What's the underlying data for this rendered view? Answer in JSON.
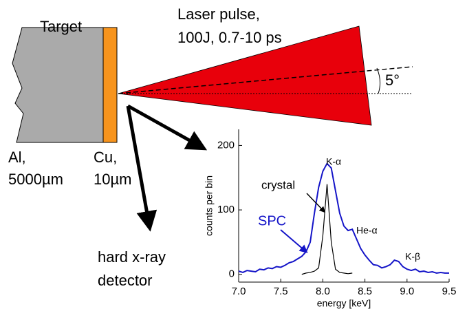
{
  "labels": {
    "target": "Target",
    "laser1": "Laser pulse,",
    "laser2": "100J, 0.7-10 ps",
    "angle": "5°",
    "al1": "Al,",
    "al2": "5000µm",
    "cu1": "Cu,",
    "cu2": "10µm",
    "det1": "hard x-ray",
    "det2": "detector"
  },
  "chart_data": {
    "type": "line",
    "xlabel": "energy [keV]",
    "ylabel": "counts per bin",
    "xlim": [
      7.0,
      9.5
    ],
    "ylim": [
      -12,
      225
    ],
    "xticks": [
      {
        "value": 7,
        "label": "7.0"
      },
      7.5,
      {
        "value": 8,
        "label": "8.0"
      },
      8.5,
      {
        "value": 9,
        "label": "9.0"
      },
      9.5
    ],
    "yticks": [
      0,
      100,
      200
    ],
    "series": [
      {
        "name": "SPC",
        "color": "#1414c8",
        "x": [
          7.0,
          7.05,
          7.1,
          7.15,
          7.2,
          7.25,
          7.3,
          7.35,
          7.4,
          7.45,
          7.5,
          7.55,
          7.6,
          7.65,
          7.7,
          7.75,
          7.8,
          7.85,
          7.9,
          7.95,
          8.0,
          8.05,
          8.1,
          8.15,
          8.2,
          8.25,
          8.3,
          8.35,
          8.4,
          8.45,
          8.5,
          8.55,
          8.6,
          8.65,
          8.7,
          8.75,
          8.8,
          8.85,
          8.9,
          8.95,
          9.0,
          9.05,
          9.1,
          9.15,
          9.2,
          9.25,
          9.3,
          9.35,
          9.4,
          9.45,
          9.5
        ],
        "values": [
          5,
          3,
          6,
          5,
          4,
          8,
          7,
          10,
          9,
          12,
          11,
          14,
          18,
          20,
          24,
          28,
          35,
          50,
          95,
          135,
          160,
          172,
          165,
          130,
          95,
          75,
          68,
          70,
          55,
          40,
          30,
          22,
          15,
          14,
          10,
          12,
          15,
          22,
          20,
          12,
          8,
          6,
          8,
          4,
          5,
          3,
          4,
          2,
          3,
          2,
          2
        ]
      },
      {
        "name": "crystal",
        "color": "#000000",
        "x": [
          7.75,
          7.8,
          7.85,
          7.9,
          7.95,
          8.0,
          8.05,
          8.1,
          8.15,
          8.2,
          8.25,
          8.3,
          8.35
        ],
        "values": [
          0,
          2,
          3,
          5,
          10,
          60,
          140,
          50,
          8,
          3,
          2,
          1,
          2
        ]
      }
    ],
    "annotations": [
      "K-α",
      "He-α",
      "K-β"
    ]
  }
}
